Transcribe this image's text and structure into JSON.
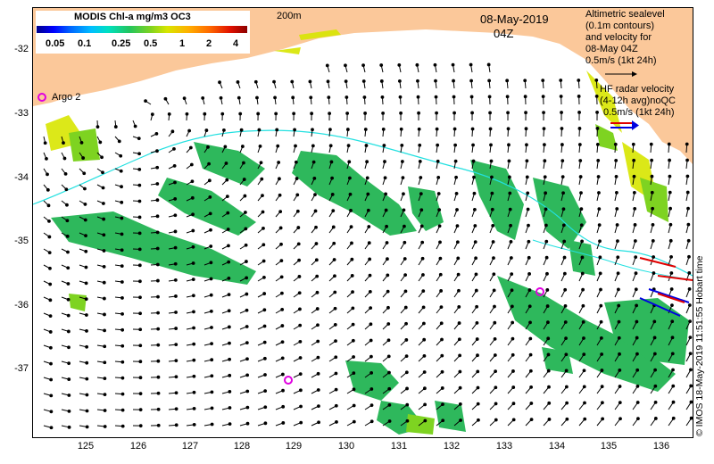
{
  "legend": {
    "title": "MODIS Chl-a mg/m3 OC3",
    "ticks": [
      "0.05",
      "0.1",
      "0.25",
      "0.5",
      "1",
      "2",
      "4"
    ]
  },
  "contour_label": "200m",
  "date": "08-May-2019",
  "time": "04Z",
  "altimetry_note": {
    "line1": "Altimetric sealevel",
    "line2": "(0.1m contours)",
    "line3": "and velocity for",
    "line4": "08-May 04Z",
    "line5": "0.5m/s (1kt 24h)"
  },
  "hf_radar_note": {
    "line1": "HF radar velocity",
    "line2": "(4-12h avg)noQC",
    "line3": "0.5m/s (1kt 24h)"
  },
  "argo_label": "Argo 2",
  "credit": "© IMOS 18-May-2019 11:51:55 Hobart time",
  "axes": {
    "y_ticks": [
      "-32",
      "-33",
      "-34",
      "-35",
      "-36",
      "-37"
    ],
    "x_ticks": [
      "125",
      "126",
      "127",
      "128",
      "129",
      "130",
      "131",
      "132",
      "133",
      "134",
      "135",
      "136"
    ]
  },
  "colors": {
    "land": "#FBC89A",
    "contour": "#22E0E0",
    "chlorophyll_main": "#2EB85C",
    "chlorophyll_high": "#7ED321",
    "chlorophyll_yellow": "#D8E600",
    "argo_marker": "#E000E0",
    "hf_red": "#E00000",
    "hf_blue": "#0000E0",
    "arrow": "#000000"
  }
}
